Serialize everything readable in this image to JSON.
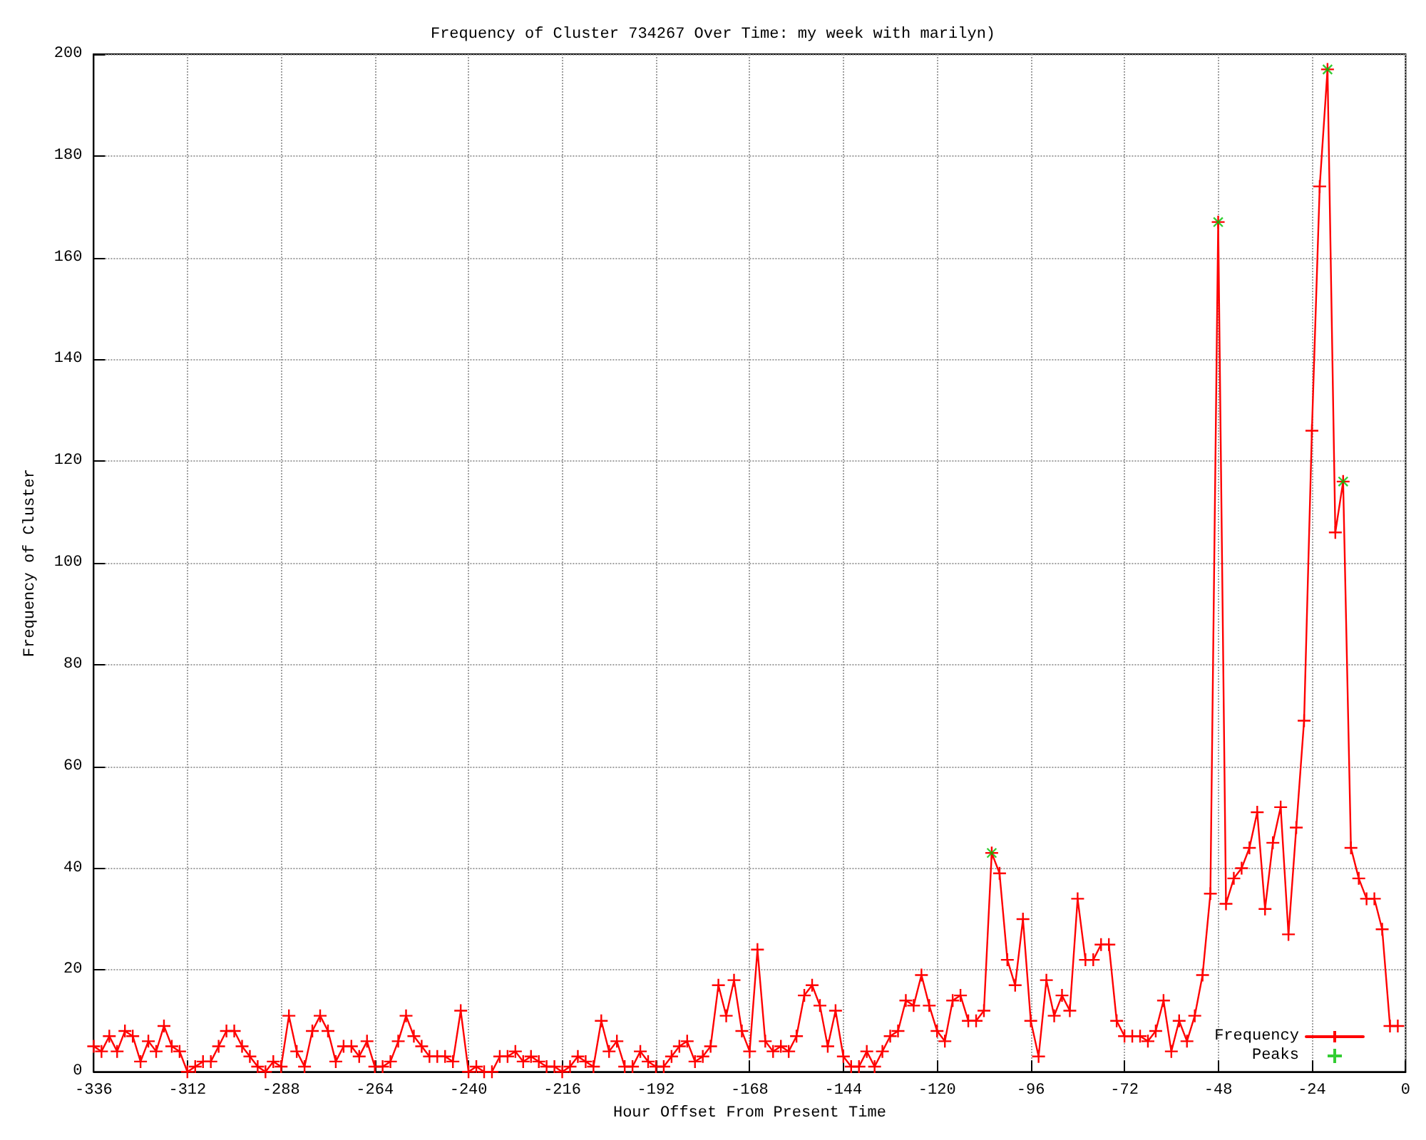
{
  "chart_data": {
    "type": "line",
    "title": "Frequency of Cluster 734267 Over Time: my week with marilyn)",
    "xlabel": "Hour Offset From Present Time",
    "ylabel": "Frequency of Cluster",
    "x": [
      -336,
      -334,
      -332,
      -330,
      -328,
      -326,
      -324,
      -322,
      -320,
      -318,
      -316,
      -314,
      -312,
      -310,
      -308,
      -306,
      -304,
      -302,
      -300,
      -298,
      -296,
      -294,
      -292,
      -290,
      -288,
      -286,
      -284,
      -282,
      -280,
      -278,
      -276,
      -274,
      -272,
      -270,
      -268,
      -266,
      -264,
      -262,
      -260,
      -258,
      -256,
      -254,
      -252,
      -250,
      -248,
      -246,
      -244,
      -242,
      -240,
      -238,
      -236,
      -234,
      -232,
      -230,
      -228,
      -226,
      -224,
      -222,
      -220,
      -218,
      -216,
      -214,
      -212,
      -210,
      -208,
      -206,
      -204,
      -202,
      -200,
      -198,
      -196,
      -194,
      -192,
      -190,
      -188,
      -186,
      -184,
      -182,
      -180,
      -178,
      -176,
      -174,
      -172,
      -170,
      -168,
      -166,
      -164,
      -162,
      -160,
      -158,
      -156,
      -154,
      -152,
      -150,
      -148,
      -146,
      -144,
      -142,
      -140,
      -138,
      -136,
      -134,
      -132,
      -130,
      -128,
      -126,
      -124,
      -122,
      -120,
      -118,
      -116,
      -114,
      -112,
      -110,
      -108,
      -106,
      -104,
      -102,
      -100,
      -98,
      -96,
      -94,
      -92,
      -90,
      -88,
      -86,
      -84,
      -82,
      -80,
      -78,
      -76,
      -74,
      -72,
      -70,
      -68,
      -66,
      -64,
      -62,
      -60,
      -58,
      -56,
      -54,
      -52,
      -50,
      -48,
      -46,
      -44,
      -42,
      -40,
      -38,
      -36,
      -34,
      -32,
      -30,
      -28,
      -26,
      -24,
      -22,
      -20,
      -18,
      -16,
      -14,
      -12,
      -10,
      -8,
      -6,
      -4,
      -2
    ],
    "series": [
      {
        "name": "Frequency",
        "color": "#ff0000",
        "values": [
          5,
          4,
          7,
          4,
          8,
          7,
          2,
          6,
          4,
          9,
          5,
          4,
          0,
          1,
          2,
          2,
          5,
          8,
          8,
          5,
          3,
          1,
          0,
          2,
          1,
          11,
          4,
          1,
          8,
          11,
          8,
          2,
          5,
          5,
          3,
          6,
          1,
          1,
          2,
          6,
          11,
          7,
          5,
          3,
          3,
          3,
          2,
          12,
          0,
          1,
          0,
          0,
          3,
          3,
          4,
          2,
          3,
          2,
          1,
          1,
          0,
          1,
          3,
          2,
          1,
          10,
          4,
          6,
          1,
          1,
          4,
          2,
          1,
          1,
          3,
          5,
          6,
          2,
          3,
          5,
          17,
          11,
          18,
          8,
          4,
          24,
          6,
          4,
          5,
          4,
          7,
          15,
          17,
          13,
          5,
          12,
          3,
          1,
          1,
          4,
          1,
          4,
          7,
          8,
          14,
          13,
          19,
          13,
          8,
          6,
          14,
          15,
          10,
          10,
          12,
          43,
          39,
          22,
          17,
          30,
          10,
          3,
          18,
          11,
          15,
          12,
          34,
          22,
          22,
          25,
          25,
          10,
          7,
          7,
          7,
          6,
          8,
          14,
          4,
          10,
          6,
          11,
          19,
          35,
          167,
          33,
          38,
          40,
          44,
          51,
          32,
          45,
          52,
          27,
          48,
          69,
          126,
          174,
          197,
          106,
          116,
          44,
          38,
          34,
          34,
          28,
          9,
          9
        ]
      },
      {
        "name": "Peaks",
        "type": "scatter",
        "color": "#00c000",
        "x": [
          -106,
          -48,
          -20,
          -16
        ],
        "values": [
          43,
          167,
          197,
          116
        ]
      }
    ],
    "xlim": [
      -336,
      0
    ],
    "xticks": [
      -336,
      -312,
      -288,
      -264,
      -240,
      -216,
      -192,
      -168,
      -144,
      -120,
      -96,
      -72,
      -48,
      -24,
      0
    ],
    "ylim": [
      0,
      200
    ],
    "yticks": [
      0,
      20,
      40,
      60,
      80,
      100,
      120,
      140,
      160,
      180,
      200
    ],
    "grid": true,
    "legend": "bottom right",
    "marker": "cross",
    "line_style": "solid"
  }
}
